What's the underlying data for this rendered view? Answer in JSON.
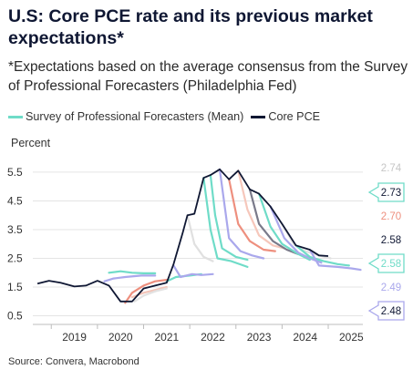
{
  "title": "U.S: Core PCE rate and its previous market expectations*",
  "subtitle": "*Expectations based on the average consensus from the Survey of Professional Forecasters (Philadelphia Fed)",
  "source": "Source: Convera, Macrobond",
  "colors": {
    "core_pce": "#0f1733",
    "spf_mean": "#6fdcc8",
    "grid": "#e4e4e4",
    "axis": "#bdbdbd"
  },
  "chart_data": {
    "type": "line",
    "ylabel": "Percent",
    "xlim": [
      2018.1,
      2025.25
    ],
    "ylim": [
      0.2,
      6.1
    ],
    "x_ticks": [
      "2019",
      "2020",
      "2021",
      "2022",
      "2023",
      "2024",
      "2025"
    ],
    "y_ticks": [
      "5.5",
      "4.5",
      "3.5",
      "2.5",
      "1.5",
      "0.5"
    ],
    "legend": {
      "placement": "top-left",
      "entries": [
        "Survey of Professional Forecasters (Mean)",
        "Core PCE"
      ]
    },
    "core_pce": {
      "name": "Core PCE",
      "color": "#0f1733",
      "points": [
        [
          2018.2,
          1.62
        ],
        [
          2018.45,
          1.72
        ],
        [
          2018.7,
          1.65
        ],
        [
          2019.0,
          1.52
        ],
        [
          2019.25,
          1.55
        ],
        [
          2019.5,
          1.72
        ],
        [
          2019.75,
          1.55
        ],
        [
          2020.0,
          1.0
        ],
        [
          2020.25,
          1.0
        ],
        [
          2020.5,
          1.45
        ],
        [
          2020.75,
          1.55
        ],
        [
          2021.0,
          1.65
        ],
        [
          2021.15,
          2.3
        ],
        [
          2021.35,
          3.4
        ],
        [
          2021.45,
          4.0
        ],
        [
          2021.6,
          4.05
        ],
        [
          2021.8,
          5.3
        ],
        [
          2021.95,
          5.4
        ],
        [
          2022.15,
          5.6
        ],
        [
          2022.35,
          5.25
        ],
        [
          2022.55,
          5.55
        ],
        [
          2022.8,
          4.9
        ],
        [
          2023.0,
          4.75
        ],
        [
          2023.25,
          4.3
        ],
        [
          2023.5,
          3.7
        ],
        [
          2023.8,
          2.95
        ],
        [
          2024.1,
          2.8
        ],
        [
          2024.3,
          2.6
        ],
        [
          2024.5,
          2.58
        ]
      ]
    },
    "forecast_vintages": [
      {
        "color": "#6fdcc8",
        "points": [
          [
            2019.75,
            2.0
          ],
          [
            2020.0,
            2.05
          ],
          [
            2020.25,
            2.0
          ],
          [
            2020.5,
            1.98
          ],
          [
            2020.75,
            1.98
          ]
        ]
      },
      {
        "color": "#aaa8ec",
        "points": [
          [
            2019.65,
            1.7
          ],
          [
            2019.85,
            1.8
          ],
          [
            2020.1,
            1.85
          ],
          [
            2020.45,
            1.9
          ],
          [
            2020.75,
            1.9
          ]
        ]
      },
      {
        "color": "#f3c4b8",
        "points": [
          [
            2020.25,
            1.15
          ],
          [
            2020.5,
            1.3
          ],
          [
            2020.75,
            1.4
          ],
          [
            2021.0,
            1.5
          ]
        ]
      },
      {
        "color": "#e2e2e2",
        "points": [
          [
            2020.3,
            1.0
          ],
          [
            2020.5,
            1.2
          ],
          [
            2020.75,
            1.35
          ],
          [
            2021.0,
            1.45
          ]
        ]
      },
      {
        "color": "#ee8f7e",
        "points": [
          [
            2020.1,
            0.95
          ],
          [
            2020.25,
            1.3
          ],
          [
            2020.5,
            1.55
          ],
          [
            2020.75,
            1.7
          ],
          [
            2021.0,
            1.75
          ]
        ]
      },
      {
        "color": "#6fdcc8",
        "points": [
          [
            2021.0,
            1.7
          ],
          [
            2021.2,
            1.85
          ],
          [
            2021.5,
            1.9
          ],
          [
            2021.75,
            1.95
          ]
        ]
      },
      {
        "color": "#aaa8ec",
        "points": [
          [
            2021.15,
            2.25
          ],
          [
            2021.3,
            1.85
          ],
          [
            2021.55,
            1.95
          ],
          [
            2021.75,
            1.92
          ],
          [
            2022.0,
            1.95
          ]
        ]
      },
      {
        "color": "#e0e0e0",
        "points": [
          [
            2021.45,
            4.0
          ],
          [
            2021.6,
            3.0
          ],
          [
            2021.8,
            2.55
          ],
          [
            2022.0,
            2.4
          ]
        ]
      },
      {
        "color": "#6fdcc8",
        "points": [
          [
            2021.8,
            5.3
          ],
          [
            2021.95,
            3.5
          ],
          [
            2022.1,
            2.5
          ],
          [
            2022.4,
            2.4
          ],
          [
            2022.75,
            2.2
          ]
        ]
      },
      {
        "color": "#6fdcc8",
        "points": [
          [
            2021.95,
            5.4
          ],
          [
            2022.05,
            4.0
          ],
          [
            2022.2,
            2.85
          ],
          [
            2022.5,
            2.55
          ],
          [
            2022.75,
            2.45
          ]
        ]
      },
      {
        "color": "#aaa8ec",
        "points": [
          [
            2022.15,
            5.6
          ],
          [
            2022.35,
            3.2
          ],
          [
            2022.6,
            2.75
          ],
          [
            2022.85,
            2.6
          ],
          [
            2023.1,
            2.5
          ]
        ]
      },
      {
        "color": "#ee8f7e",
        "points": [
          [
            2022.35,
            5.25
          ],
          [
            2022.55,
            3.7
          ],
          [
            2022.8,
            3.1
          ],
          [
            2023.1,
            2.8
          ],
          [
            2023.35,
            2.75
          ]
        ]
      },
      {
        "color": "#f6c7bb",
        "points": [
          [
            2022.55,
            5.55
          ],
          [
            2022.75,
            4.2
          ],
          [
            2023.0,
            3.3
          ],
          [
            2023.3,
            2.95
          ],
          [
            2023.55,
            2.85
          ]
        ]
      },
      {
        "color": "#7a7a8a",
        "points": [
          [
            2022.8,
            4.9
          ],
          [
            2023.0,
            3.7
          ],
          [
            2023.3,
            3.1
          ],
          [
            2023.6,
            2.8
          ],
          [
            2023.85,
            2.65
          ]
        ]
      },
      {
        "color": "#6fdcc8",
        "points": [
          [
            2023.0,
            4.75
          ],
          [
            2023.25,
            3.6
          ],
          [
            2023.5,
            3.0
          ],
          [
            2023.85,
            2.65
          ],
          [
            2024.1,
            2.45
          ]
        ]
      },
      {
        "color": "#aaa8ec",
        "points": [
          [
            2023.25,
            4.3
          ],
          [
            2023.55,
            3.2
          ],
          [
            2023.85,
            2.7
          ],
          [
            2024.1,
            2.5
          ],
          [
            2024.35,
            2.35
          ]
        ]
      },
      {
        "color": "#e2e2e2",
        "points": [
          [
            2023.5,
            3.7
          ],
          [
            2023.75,
            3.0
          ],
          [
            2024.0,
            2.75
          ],
          [
            2024.3,
            2.6
          ],
          [
            2024.55,
            2.5
          ]
        ]
      },
      {
        "color": "#6fdcc8",
        "points": [
          [
            2023.8,
            2.95
          ],
          [
            2024.1,
            2.55
          ],
          [
            2024.4,
            2.4
          ],
          [
            2024.7,
            2.3
          ],
          [
            2024.95,
            2.25
          ]
        ]
      },
      {
        "color": "#aaa8ec",
        "points": [
          [
            2024.1,
            2.8
          ],
          [
            2024.3,
            2.25
          ],
          [
            2024.7,
            2.2
          ],
          [
            2025.0,
            2.15
          ],
          [
            2025.2,
            2.1
          ]
        ]
      }
    ],
    "right_labels": [
      {
        "text": "2.74",
        "value": 2.74,
        "color": "#c6c6c6",
        "boxed": false
      },
      {
        "text": "2.73",
        "value": 2.73,
        "color": "#6fdcc8",
        "boxed": true,
        "text_color": "#0f1733"
      },
      {
        "text": "2.70",
        "value": 2.7,
        "color": "#ee8f7e",
        "boxed": false
      },
      {
        "text": "2.58",
        "value": 2.58,
        "color": "#0f1733",
        "boxed": false
      },
      {
        "text": "2.58",
        "value": 2.58,
        "color": "#6fdcc8",
        "boxed": true,
        "text_color": "#6fdcc8"
      },
      {
        "text": "2.49",
        "value": 2.49,
        "color": "#aaa8ec",
        "boxed": false
      },
      {
        "text": "2.48",
        "value": 2.48,
        "color": "#aaa8ec",
        "boxed": true,
        "text_color": "#0f1733"
      }
    ]
  }
}
